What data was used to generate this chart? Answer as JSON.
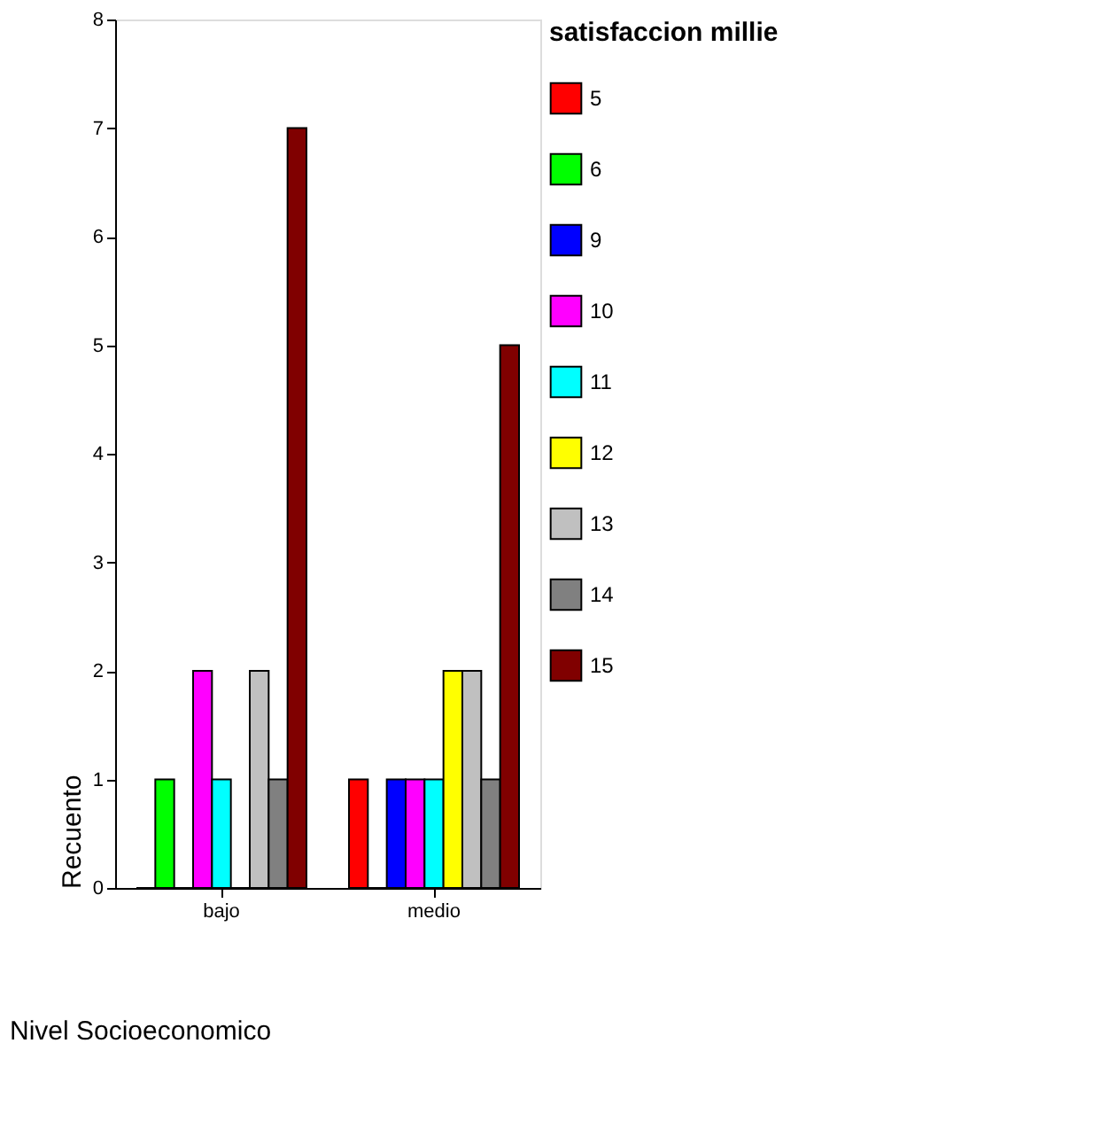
{
  "chart_data": {
    "type": "bar",
    "xlabel": "Nivel Socioeconomico",
    "ylabel": "Recuento",
    "legend_title": "satisfaccion millie",
    "categories": [
      "bajo",
      "medio"
    ],
    "series": [
      {
        "name": "5",
        "color": "#ff0000",
        "values": [
          0,
          1
        ]
      },
      {
        "name": "6",
        "color": "#00ff00",
        "values": [
          1,
          0
        ]
      },
      {
        "name": "9",
        "color": "#0000ff",
        "values": [
          0,
          1
        ]
      },
      {
        "name": "10",
        "color": "#ff00ff",
        "values": [
          2,
          1
        ]
      },
      {
        "name": "11",
        "color": "#00ffff",
        "values": [
          1,
          1
        ]
      },
      {
        "name": "12",
        "color": "#ffff00",
        "values": [
          0,
          2
        ]
      },
      {
        "name": "13",
        "color": "#c0c0c0",
        "values": [
          2,
          2
        ]
      },
      {
        "name": "14",
        "color": "#808080",
        "values": [
          1,
          1
        ]
      },
      {
        "name": "15",
        "color": "#800000",
        "values": [
          7,
          5
        ]
      }
    ],
    "ylim": [
      0,
      8
    ],
    "yticks": [
      0,
      1,
      2,
      3,
      4,
      5,
      6,
      7,
      8
    ],
    "grid": false,
    "legend": "right"
  }
}
